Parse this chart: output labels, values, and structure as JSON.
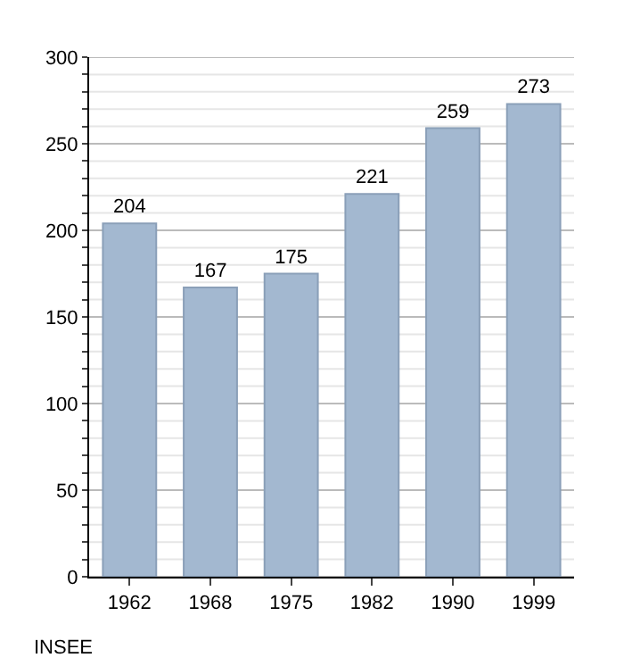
{
  "chart_data": {
    "type": "bar",
    "categories": [
      "1962",
      "1968",
      "1975",
      "1982",
      "1990",
      "1999"
    ],
    "values": [
      204,
      167,
      175,
      221,
      259,
      273
    ],
    "color": "#a3b8d0",
    "data_labels": true,
    "ylim": [
      0,
      300
    ],
    "yticks": [
      0,
      {
        "value": 10,
        "label": null
      },
      {
        "value": 20,
        "label": null
      },
      {
        "value": 30,
        "label": null
      },
      {
        "value": 40,
        "label": null
      },
      50,
      {
        "value": 60,
        "label": null
      },
      {
        "value": 70,
        "label": null
      },
      {
        "value": 80,
        "label": null
      },
      {
        "value": 90,
        "label": null
      },
      100,
      {
        "value": 110,
        "label": null
      },
      {
        "value": 120,
        "label": null
      },
      {
        "value": 130,
        "label": null
      },
      {
        "value": 140,
        "label": null
      },
      150,
      {
        "value": 160,
        "label": null
      },
      {
        "value": 170,
        "label": null
      },
      {
        "value": 180,
        "label": null
      },
      {
        "value": 190,
        "label": null
      },
      200,
      {
        "value": 210,
        "label": null
      },
      {
        "value": 220,
        "label": null
      },
      {
        "value": 230,
        "label": null
      },
      {
        "value": 240,
        "label": null
      },
      250,
      {
        "value": 260,
        "label": null
      },
      {
        "value": 270,
        "label": null
      },
      {
        "value": 280,
        "label": null
      },
      {
        "value": 290,
        "label": null
      },
      300
    ],
    "grid": "y",
    "annotations": [
      "INSEE"
    ]
  }
}
